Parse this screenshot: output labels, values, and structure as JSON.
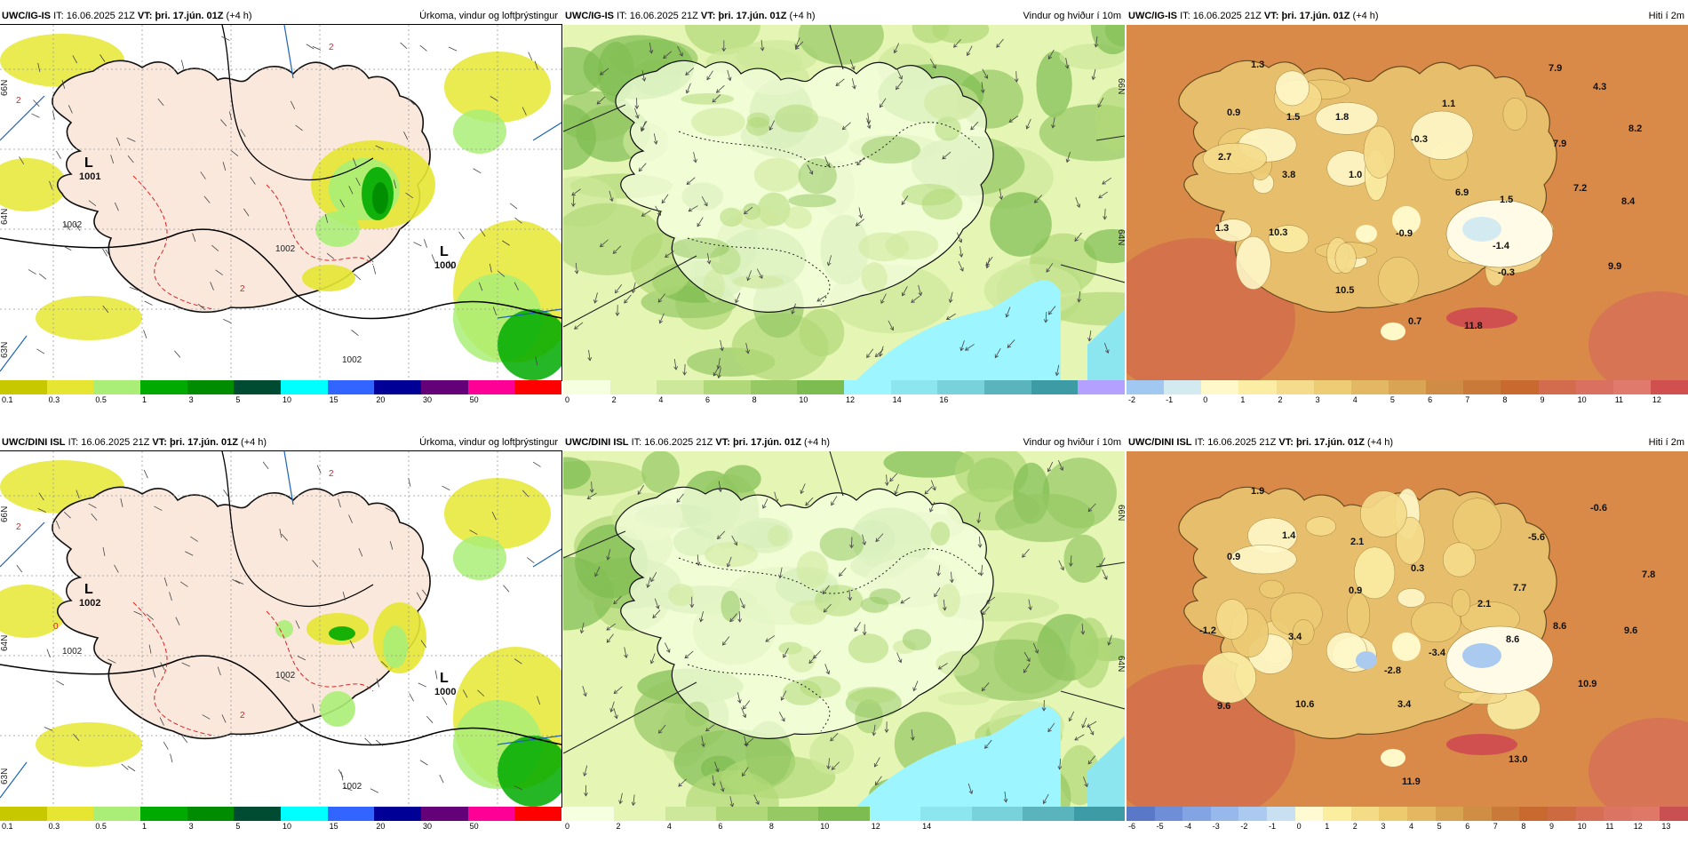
{
  "panels": [
    {
      "model_label": "UWC/IG-IS",
      "it_label": "IT:",
      "it_value": "16.06.2025 21Z",
      "vt_label": "VT:",
      "vt_value": "þri. 17.jún. 01Z",
      "lead": "(+4 h)",
      "title": "Úrkoma, vindur og loftþrýstingur",
      "type": "precip",
      "colorbar_labels": [
        "0.1",
        "0.3",
        "0.5",
        "1",
        "3",
        "5",
        "10",
        "15",
        "20",
        "30",
        "50"
      ],
      "pressure_labels": [
        "1002",
        "1002",
        "1002"
      ],
      "lows": [
        {
          "mark": "L",
          "value": "1001"
        },
        {
          "mark": "L",
          "value": "1000"
        }
      ],
      "contour_labels": [
        "2",
        "2",
        "2"
      ],
      "lat_labels": [
        "66N",
        "64N",
        "63N"
      ]
    },
    {
      "model_label": "UWC/IG-IS",
      "it_label": "IT:",
      "it_value": "16.06.2025 21Z",
      "vt_label": "VT:",
      "vt_value": "þri. 17.jún. 01Z",
      "lead": "(+4 h)",
      "title": "Vindur og hviður í 10m",
      "type": "wind",
      "colorbar_labels": [
        "0",
        "2",
        "4",
        "6",
        "8",
        "10",
        "12",
        "14",
        "16"
      ],
      "lat_labels": [
        "66N",
        "64N"
      ]
    },
    {
      "model_label": "UWC/IG-IS",
      "it_label": "IT:",
      "it_value": "16.06.2025 21Z",
      "vt_label": "VT:",
      "vt_value": "þri. 17.jún. 01Z",
      "lead": "(+4 h)",
      "title": "Hiti í 2m",
      "type": "temp",
      "colorbar_labels": [
        "-2",
        "-1",
        "0",
        "1",
        "2",
        "3",
        "4",
        "5",
        "6",
        "7",
        "8",
        "9",
        "10",
        "11",
        "12"
      ],
      "temps": [
        "1.3",
        "7.9",
        "4.3",
        "0.9",
        "1.5",
        "1.8",
        "1.1",
        "8.2",
        "2.7",
        "-0.3",
        "7.9",
        "3.8",
        "1.0",
        "6.9",
        "1.5",
        "7.2",
        "8.4",
        "1.3",
        "10.3",
        "-0.9",
        "-1.4",
        "9.9",
        "10.5",
        "-0.3",
        "0.7",
        "11.8"
      ]
    },
    {
      "model_label": "UWC/DINI ISL",
      "it_label": "IT:",
      "it_value": "16.06.2025 21Z",
      "vt_label": "VT:",
      "vt_value": "þri. 17.jún. 01Z",
      "lead": "(+4 h)",
      "title": "Úrkoma, vindur og loftþrýstingur",
      "type": "precip",
      "colorbar_labels": [
        "0.1",
        "0.3",
        "0.5",
        "1",
        "3",
        "5",
        "10",
        "15",
        "20",
        "30",
        "50"
      ],
      "pressure_labels": [
        "1002",
        "1002",
        "1002"
      ],
      "lows": [
        {
          "mark": "L",
          "value": "1002"
        },
        {
          "mark": "L",
          "value": "1000"
        }
      ],
      "contour_labels": [
        "2",
        "2",
        "2",
        "0"
      ],
      "lat_labels": [
        "66N",
        "64N",
        "63N"
      ]
    },
    {
      "model_label": "UWC/DINI ISL",
      "it_label": "IT:",
      "it_value": "16.06.2025 21Z",
      "vt_label": "VT:",
      "vt_value": "þri. 17.jún. 01Z",
      "lead": "(+4 h)",
      "title": "Vindur og hviður í 10m",
      "type": "wind",
      "colorbar_labels": [
        "0",
        "2",
        "4",
        "6",
        "8",
        "10",
        "12",
        "14"
      ],
      "lat_labels": [
        "66N",
        "64N"
      ]
    },
    {
      "model_label": "UWC/DINI ISL",
      "it_label": "IT:",
      "it_value": "16.06.2025 21Z",
      "vt_label": "VT:",
      "vt_value": "þri. 17.jún. 01Z",
      "lead": "(+4 h)",
      "title": "Hiti í 2m",
      "type": "temp",
      "colorbar_labels": [
        "-6",
        "-5",
        "-4",
        "-3",
        "-2",
        "-1",
        "0",
        "1",
        "2",
        "3",
        "4",
        "5",
        "6",
        "7",
        "8",
        "9",
        "10",
        "11",
        "12",
        "13"
      ],
      "temps": [
        "1.9",
        "-0.6",
        "1.4",
        "2.1",
        "-5.6",
        "0.9",
        "0.3",
        "7.8",
        "0.9",
        "7.7",
        "8.6",
        "2.1",
        "-1.2",
        "3.4",
        "-2.8",
        "-3.4",
        "8.6",
        "9.6",
        "10.9",
        "9.6",
        "10.6",
        "3.4",
        "13.0",
        "11.9"
      ]
    }
  ],
  "colors": {
    "precip_scale": [
      "#c8c800",
      "#e6e632",
      "#aaee77",
      "#00aa00",
      "#008c00",
      "#004c32",
      "#00ffff",
      "#3264ff",
      "#000096",
      "#640078",
      "#ff0096",
      "#ff0000"
    ],
    "wind_scale": [
      "#f6ffe0",
      "#e4f5b4",
      "#cde89a",
      "#b0d878",
      "#96c864",
      "#7dbc50",
      "#9cf5ff",
      "#8ce6f0",
      "#78d2dc",
      "#5ab4be",
      "#3c9ba5",
      "#b4a0ff"
    ],
    "temp_scale_top": [
      "#a0c8f0",
      "#d2eaf0",
      "#fff8c8",
      "#fbeea4",
      "#f5dc8c",
      "#eccc74",
      "#e3b864",
      "#d9a454",
      "#d08c44",
      "#c97a38",
      "#c86a30",
      "#d26c4c",
      "#da7060",
      "#e07a6c",
      "#d05050"
    ],
    "temp_scale_bottom": [
      "#5a78c8",
      "#6e8ed8",
      "#82a4e2",
      "#96b8ea",
      "#aacaf0",
      "#c8e0f2",
      "#fffad2",
      "#fbee9e",
      "#f4dc86",
      "#ecca6e",
      "#e3b860",
      "#d9a452",
      "#d08e44",
      "#c97a38",
      "#c86a30",
      "#ce6a40",
      "#d66e54",
      "#dc7464",
      "#e07868",
      "#c85050"
    ],
    "land": "#fae8dc",
    "coast": "#111111"
  }
}
